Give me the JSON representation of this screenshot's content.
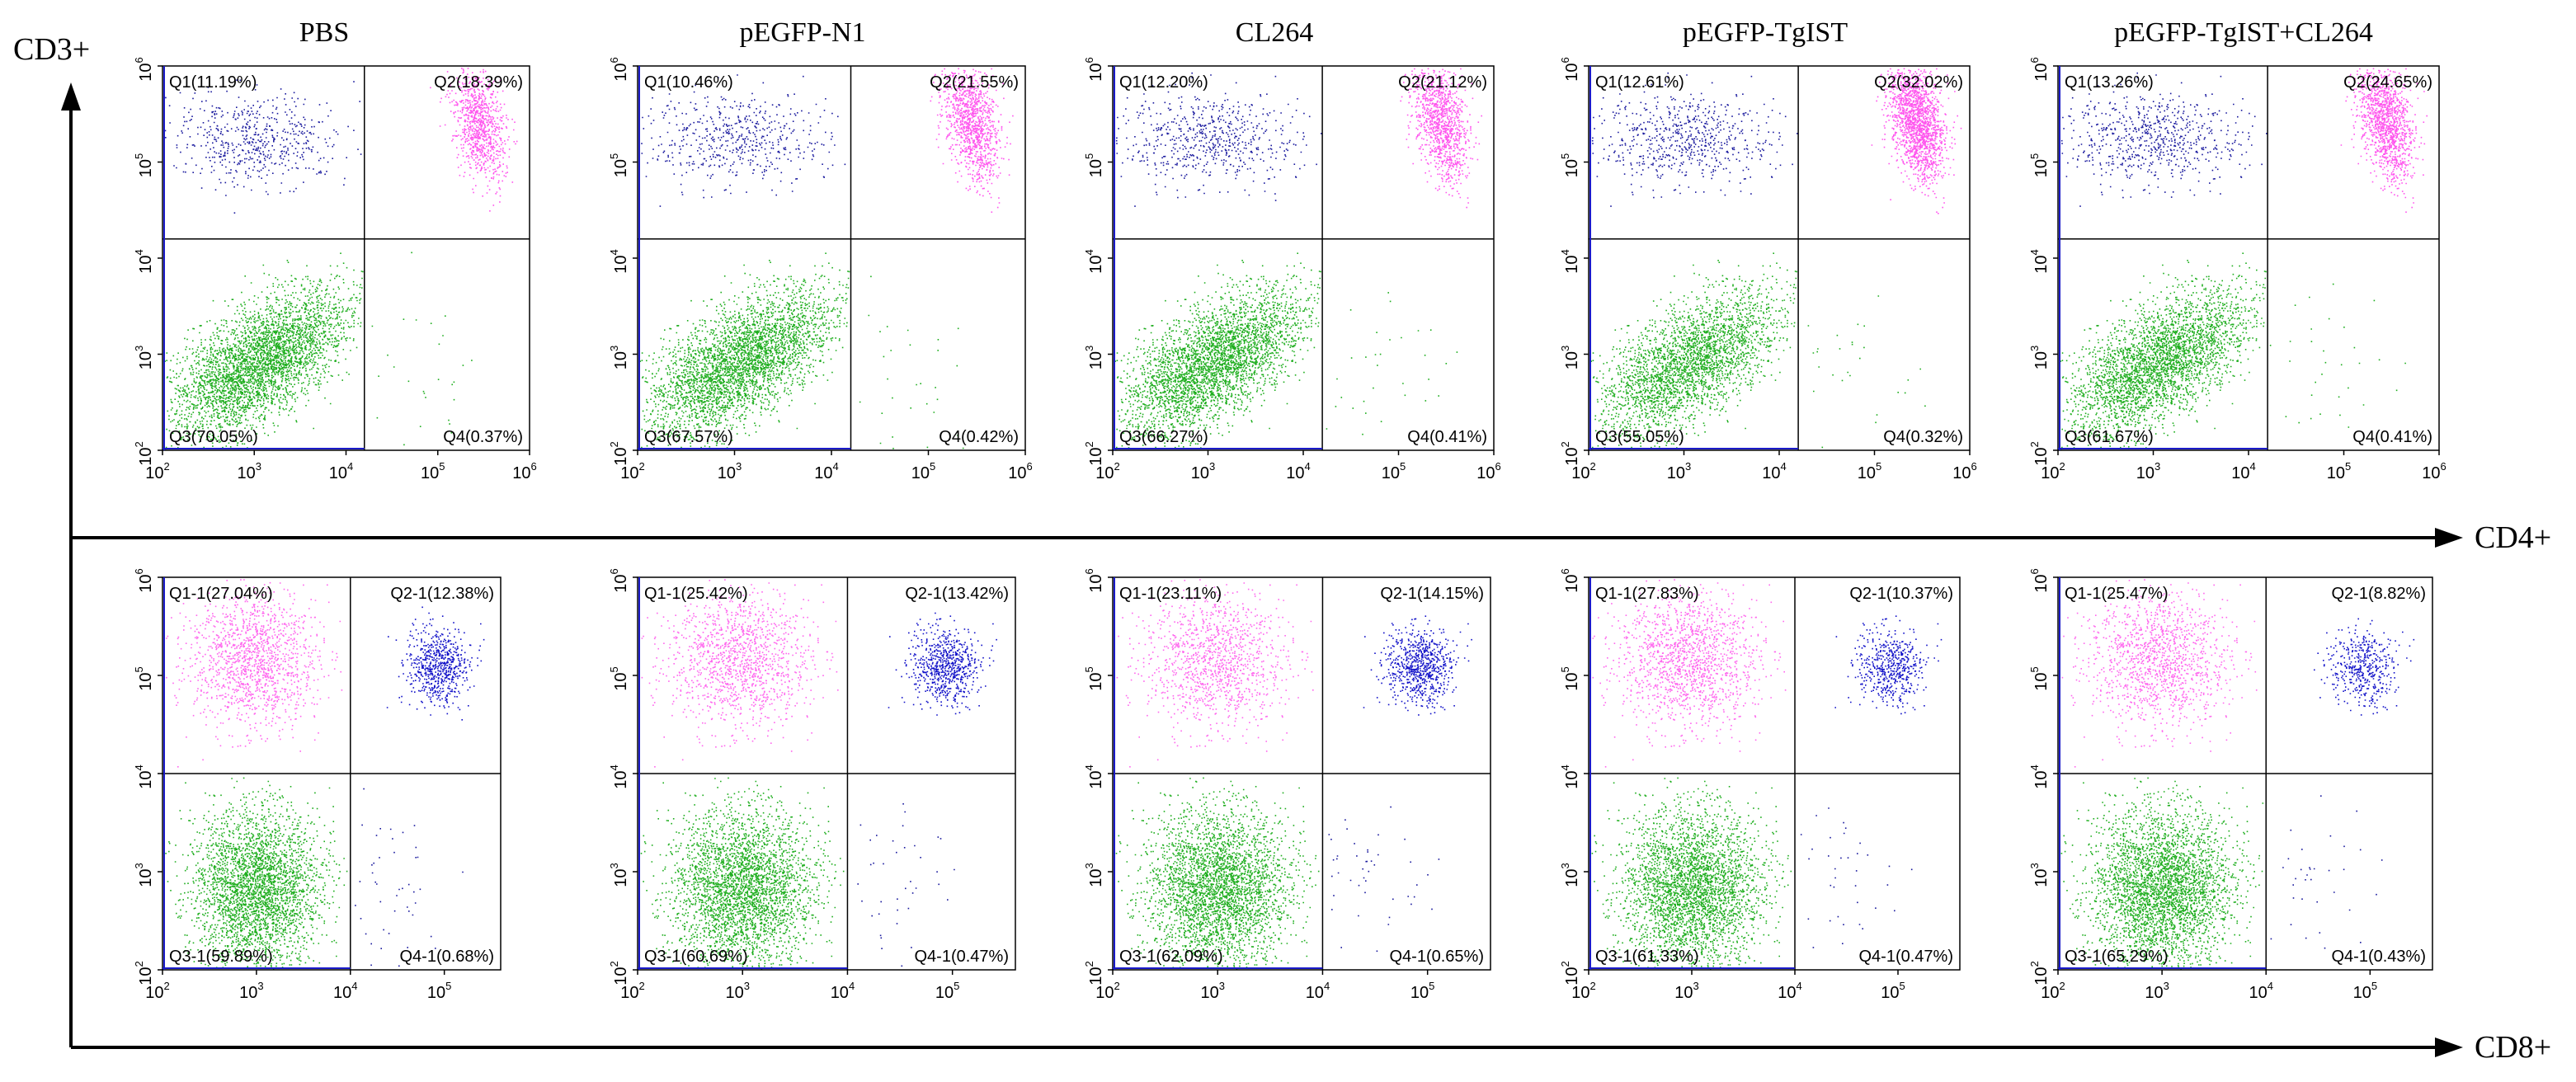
{
  "chart_data": {
    "type": "scatter",
    "description_axes": {
      "y_axis_label": "CD3+",
      "x_axis_label_top": "CD4+",
      "x_axis_label_bottom": "CD8+"
    },
    "titles": [
      "PBS",
      "pEGFP-N1",
      "CL264",
      "pEGFP-TgIST",
      "pEGFP-TgIST+CL264"
    ],
    "top_row": {
      "x_ticks": [
        "10^2",
        "10^3",
        "10^4",
        "10^5",
        "10^6"
      ],
      "y_ticks": [
        "10^2",
        "10^3",
        "10^4",
        "10^5",
        "10^6"
      ],
      "x_log_range": [
        2,
        6
      ],
      "y_log_range": [
        2,
        6
      ],
      "gate_x_log": 4.2,
      "gate_y_log": 4.2,
      "panels": [
        {
          "q1": "Q1(11.19%)",
          "q2": "Q2(18.39%)",
          "q3": "Q3(70.05%)",
          "q4": "Q4(0.37%)"
        },
        {
          "q1": "Q1(10.46%)",
          "q2": "Q2(21.55%)",
          "q3": "Q3(67.57%)",
          "q4": "Q4(0.42%)"
        },
        {
          "q1": "Q1(12.20%)",
          "q2": "Q2(21.12%)",
          "q3": "Q3(66.27%)",
          "q4": "Q4(0.41%)"
        },
        {
          "q1": "Q1(12.61%)",
          "q2": "Q2(32.02%)",
          "q3": "Q3(55.05%)",
          "q4": "Q4(0.32%)"
        },
        {
          "q1": "Q1(13.26%)",
          "q2": "Q2(24.65%)",
          "q3": "Q3(61.67%)",
          "q4": "Q4(0.41%)"
        }
      ],
      "percent_q1": [
        11.19,
        10.46,
        12.2,
        12.61,
        13.26
      ],
      "percent_q2": [
        18.39,
        21.55,
        21.12,
        32.02,
        24.65
      ],
      "percent_q3": [
        70.05,
        67.57,
        66.27,
        55.05,
        61.67
      ],
      "percent_q4": [
        0.37,
        0.42,
        0.41,
        0.32,
        0.41
      ]
    },
    "bottom_row": {
      "x_ticks": [
        "10^2",
        "10^3",
        "10^4",
        "10^5"
      ],
      "y_ticks": [
        "10^2",
        "10^3",
        "10^4",
        "10^5",
        "10^6"
      ],
      "x_log_range": [
        2,
        5.6
      ],
      "y_log_range": [
        2,
        6
      ],
      "gate_x_log": 4.0,
      "gate_y_log": 4.0,
      "panels": [
        {
          "q1": "Q1-1(27.04%)",
          "q2": "Q2-1(12.38%)",
          "q3": "Q3-1(59.89%)",
          "q4": "Q4-1(0.68%)"
        },
        {
          "q1": "Q1-1(25.42%)",
          "q2": "Q2-1(13.42%)",
          "q3": "Q3-1(60.69%)",
          "q4": "Q4-1(0.47%)"
        },
        {
          "q1": "Q1-1(23.11%)",
          "q2": "Q2-1(14.15%)",
          "q3": "Q3-1(62.09%)",
          "q4": "Q4-1(0.65%)"
        },
        {
          "q1": "Q1-1(27.83%)",
          "q2": "Q2-1(10.37%)",
          "q3": "Q3-1(61.33%)",
          "q4": "Q4-1(0.47%)"
        },
        {
          "q1": "Q1-1(25.47%)",
          "q2": "Q2-1(8.82%)",
          "q3": "Q3-1(65.29%)",
          "q4": "Q4-1(0.43%)"
        }
      ],
      "percent_q1": [
        27.04,
        25.42,
        23.11,
        27.83,
        25.47
      ],
      "percent_q2": [
        12.38,
        13.42,
        14.15,
        10.37,
        8.82
      ],
      "percent_q3": [
        59.89,
        60.69,
        62.09,
        61.33,
        65.29
      ],
      "percent_q4": [
        0.68,
        0.47,
        0.65,
        0.47,
        0.43
      ]
    },
    "population_colors": {
      "top_q1": "#1a1a9e",
      "top_q2": "#ff55ee",
      "top_q3": "#1fae1f",
      "top_q4": "#1fae1f",
      "bottom_q1": "#ff66ee",
      "bottom_q2": "#1010c8",
      "bottom_q3": "#1fae1f",
      "bottom_q4": "#1a1a9e"
    }
  }
}
